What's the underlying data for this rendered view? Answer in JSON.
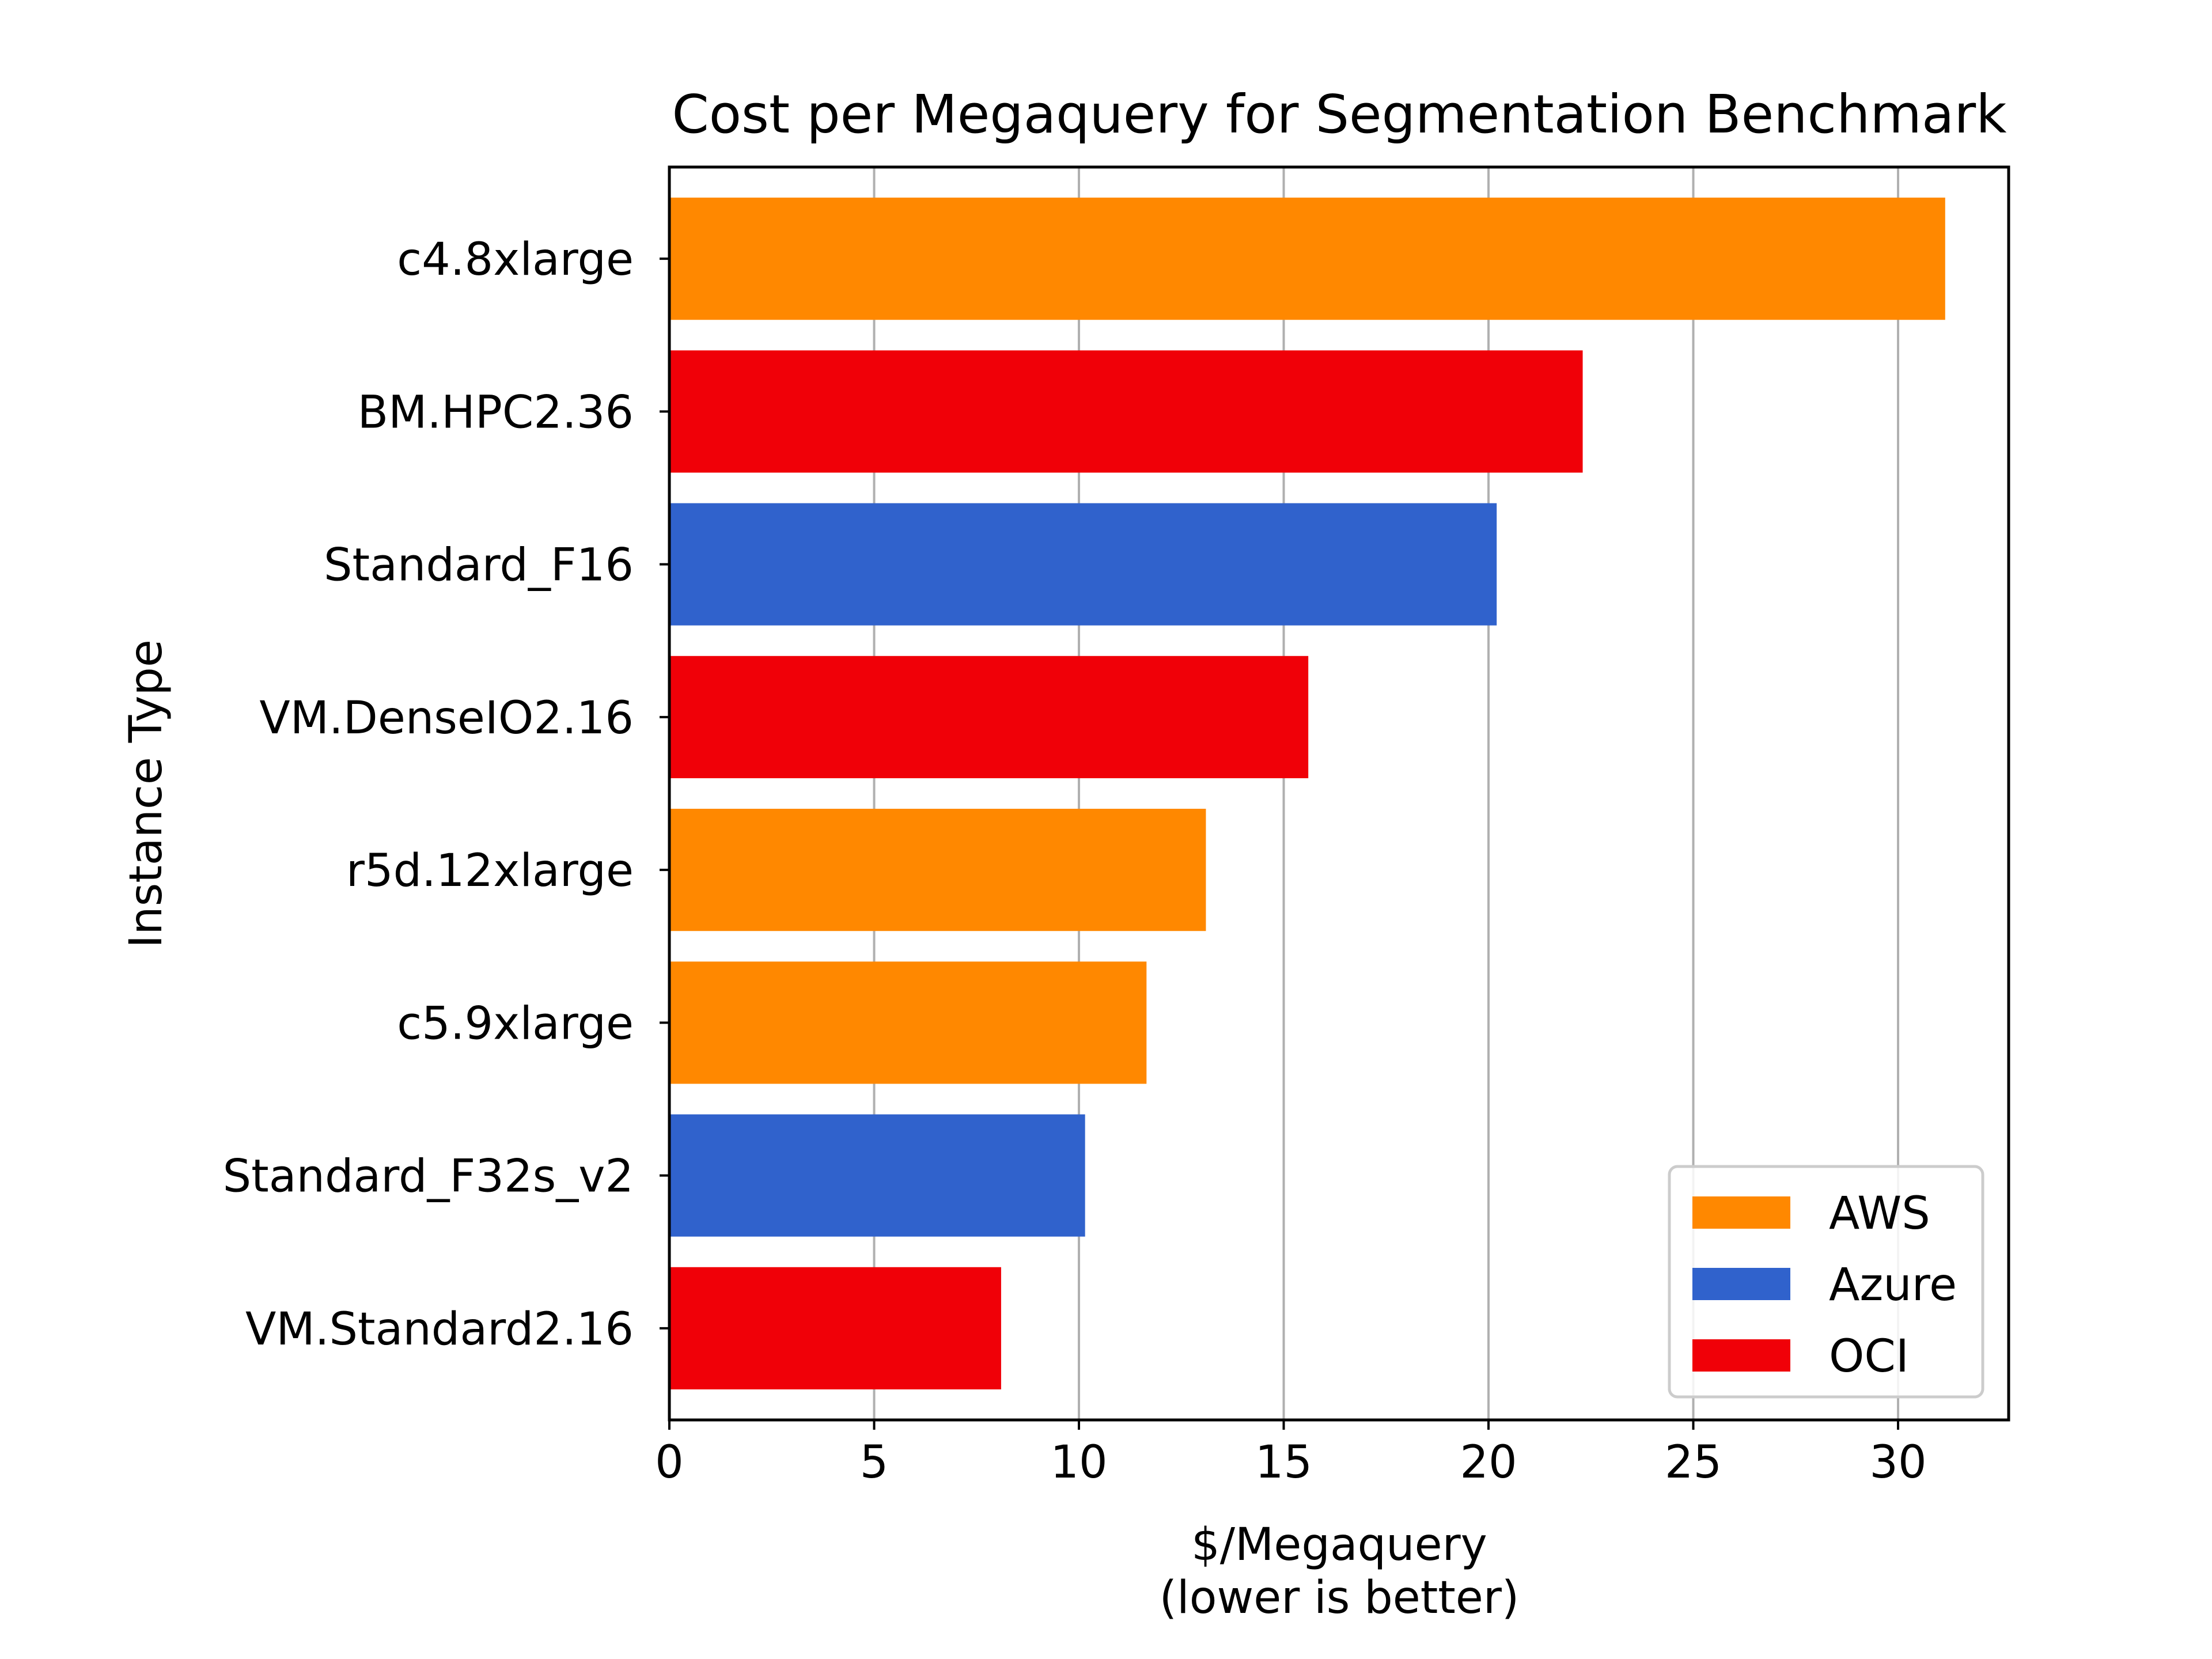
{
  "chart_data": {
    "type": "bar",
    "orientation": "horizontal",
    "title": "Cost per Megaquery for Segmentation Benchmark",
    "xlabel": "$/Megaquery",
    "xlabel_line2": "(lower is better)",
    "ylabel": "Instance Type",
    "xlim": [
      0,
      32.7
    ],
    "xticks": [
      0,
      5,
      10,
      15,
      20,
      25,
      30
    ],
    "grid": "vertical",
    "legend_position": "lower-right",
    "categories": [
      "c4.8xlarge",
      "BM.HPC2.36",
      "Standard_F16",
      "VM.DenseIO2.16",
      "r5d.12xlarge",
      "c5.9xlarge",
      "Standard_F32s_v2",
      "VM.Standard2.16"
    ],
    "values": [
      31.15,
      22.3,
      20.2,
      15.6,
      13.1,
      11.65,
      10.15,
      8.1
    ],
    "providers": [
      "AWS",
      "OCI",
      "Azure",
      "OCI",
      "AWS",
      "AWS",
      "Azure",
      "OCI"
    ],
    "legend": [
      {
        "name": "AWS",
        "color": "#ff8800"
      },
      {
        "name": "Azure",
        "color": "#3062cc"
      },
      {
        "name": "OCI",
        "color": "#f00008"
      }
    ]
  }
}
